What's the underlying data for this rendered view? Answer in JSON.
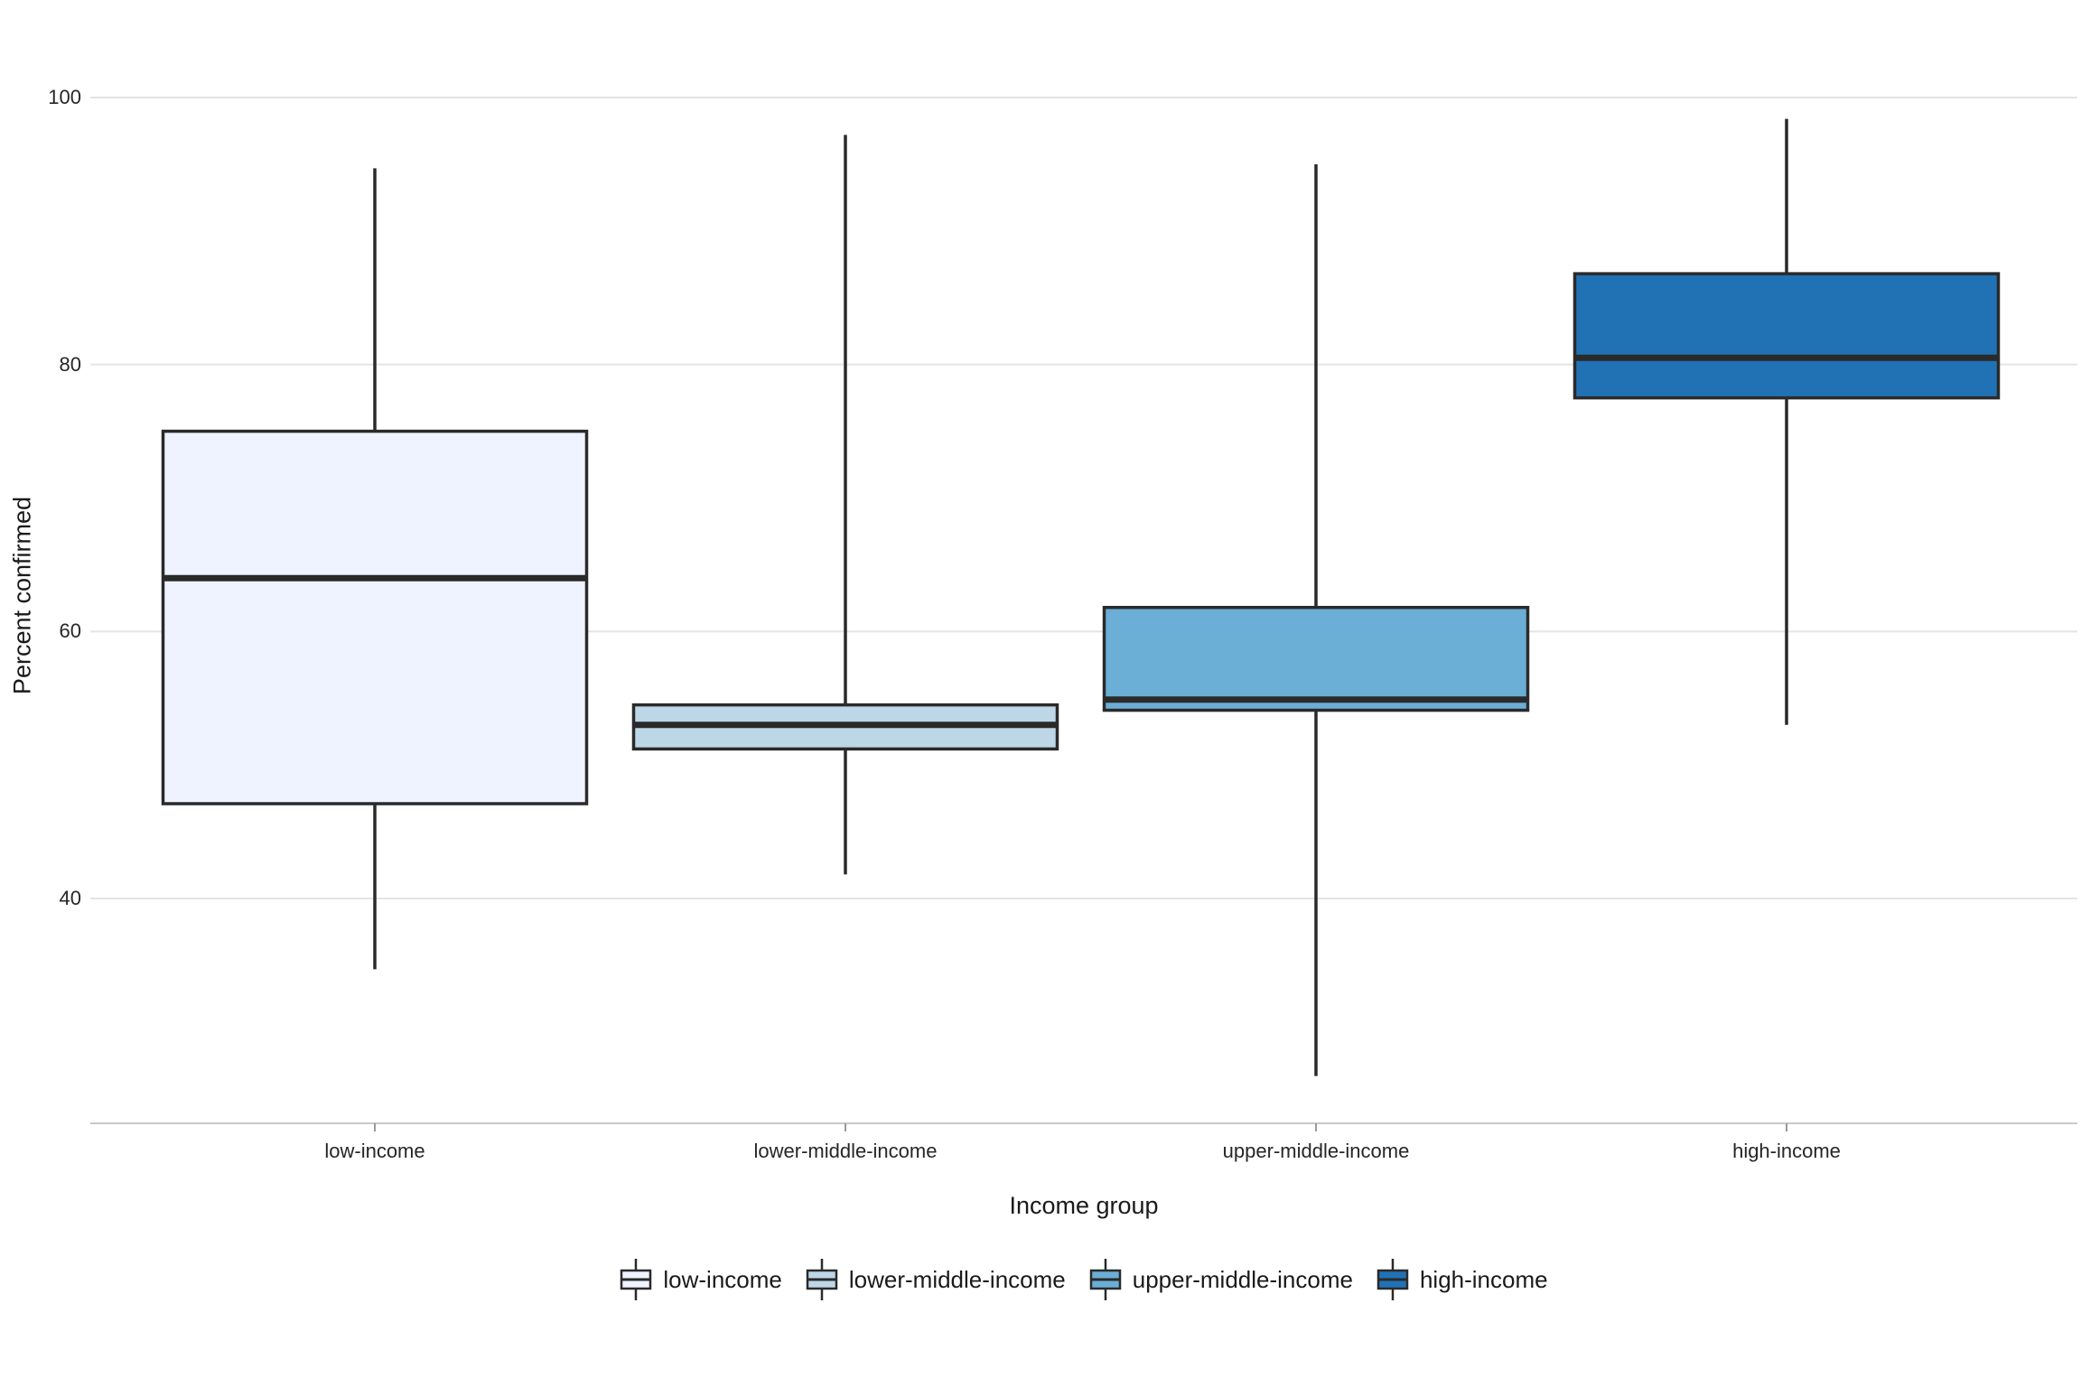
{
  "chart_data": {
    "type": "boxplot",
    "title": "",
    "xlabel": "Income group",
    "ylabel": "Percent confirmed",
    "categories": [
      "low-income",
      "lower-middle-income",
      "upper-middle-income",
      "high-income"
    ],
    "yticks": [
      100,
      80,
      60,
      40
    ],
    "ylim": [
      23,
      104.6
    ],
    "grid": "horizontal-only",
    "legend_position": "bottom",
    "series": [
      {
        "name": "low-income",
        "color": "#EFF3FF",
        "whisker_low": 34.7,
        "q1": 47.1,
        "median": 64.0,
        "q3": 75.0,
        "whisker_high": 94.7
      },
      {
        "name": "lower-middle-income",
        "color": "#BDD7E7",
        "whisker_low": 41.8,
        "q1": 51.2,
        "median": 53.0,
        "q3": 54.5,
        "whisker_high": 97.2
      },
      {
        "name": "upper-middle-income",
        "color": "#6BAED6",
        "whisker_low": 26.7,
        "q1": 54.1,
        "median": 54.9,
        "q3": 61.8,
        "whisker_high": 95.0
      },
      {
        "name": "high-income",
        "color": "#2171B5",
        "whisker_low": 53.0,
        "q1": 77.5,
        "median": 80.5,
        "q3": 86.8,
        "whisker_high": 98.4
      }
    ],
    "style": {
      "box_border_color": "#2A2A2A",
      "gridline_color": "#E4E4E4",
      "axis_line_color": "#C9C9C9",
      "tick_mark_color": "#999999",
      "background": "#FFFFFF"
    }
  }
}
